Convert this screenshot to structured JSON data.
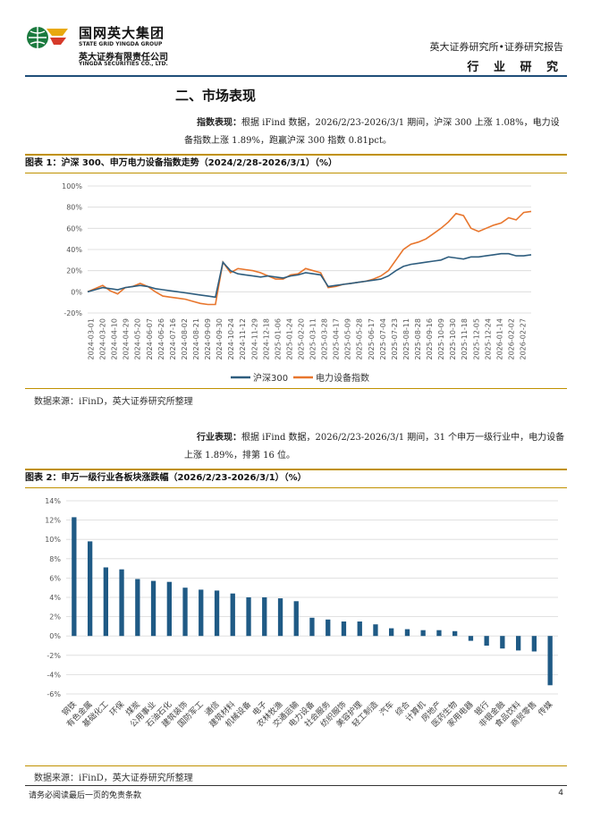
{
  "header": {
    "company_cn": "国网英大集团",
    "company_en": "STATE GRID YINGDA GROUP",
    "sub_cn": "英大证券有限责任公司",
    "sub_en": "YINGDA SECURITIES CO., LTD.",
    "right_title": "英大证券研究所•证券研究报告",
    "right_tag": "行 业 研 究"
  },
  "section_title": "二、市场表现",
  "para1": {
    "lead": "指数表现：",
    "text": "根据 iFind 数据，2026/2/23-2026/3/1 期间，沪深 300 上涨 1.08%，电力设备指数上涨 1.89%，跑赢沪深 300 指数 0.81pct。"
  },
  "fig1": {
    "title": "图表 1：沪深 300、申万电力设备指数走势（2024/2/28-2026/3/1）（%）",
    "source": "数据来源：iFinD，英大证券研究所整理"
  },
  "para2": {
    "lead": "行业表现：",
    "text": "根据 iFind 数据，2026/2/23-2026/3/1 期间，31 个申万一级行业中，电力设备上涨 1.89%，排第 16 位。"
  },
  "fig2": {
    "title": "图表 2：申万一级行业各板块涨跌幅（2026/2/23-2026/3/1）（%）",
    "source": "数据来源：iFinD，英大证券研究所整理"
  },
  "footer": {
    "disclaimer": "请务必阅读最后一页的免责条款",
    "page": "4"
  },
  "colors": {
    "hs300": "#2e5d7e",
    "power": "#e8762d",
    "bar": "#1f5a85",
    "accent": "#c09100"
  },
  "chart_data": [
    {
      "type": "line",
      "title": "沪深300、申万电力设备指数走势（2024/2/28-2026/3/1）（%）",
      "ylim": [
        -20,
        100
      ],
      "yticks": [
        "-20%",
        "0%",
        "20%",
        "40%",
        "60%",
        "80%",
        "100%"
      ],
      "ytick_values": [
        -20,
        0,
        20,
        40,
        60,
        80,
        100
      ],
      "xticks": [
        "2024-03-01",
        "2024-03-20",
        "2024-04-10",
        "2024-04-29",
        "2024-05-20",
        "2024-06-07",
        "2024-06-26",
        "2024-07-16",
        "2024-08-02",
        "2024-08-21",
        "2024-09-09",
        "2024-09-30",
        "2024-10-24",
        "2024-11-12",
        "2024-11-29",
        "2024-12-18",
        "2025-01-06",
        "2025-01-24",
        "2025-02-20",
        "2025-03-11",
        "2025-03-28",
        "2025-04-17",
        "2025-05-09",
        "2025-05-28",
        "2025-06-17",
        "2025-07-04",
        "2025-07-23",
        "2025-08-11",
        "2025-08-28",
        "2025-09-16",
        "2025-10-09",
        "2025-10-30",
        "2025-11-18",
        "2025-12-05",
        "2025-12-24",
        "2026-01-14",
        "2026-02-02",
        "2026-02-27"
      ],
      "series": [
        {
          "name": "沪深300",
          "values": [
            0,
            2,
            4,
            3,
            2,
            4,
            5,
            6,
            5,
            3,
            2,
            1,
            0,
            -1,
            -2,
            -3,
            -4,
            -5,
            28,
            20,
            17,
            16,
            15,
            14,
            15,
            14,
            13,
            15,
            16,
            18,
            17,
            16,
            5,
            6,
            7,
            8,
            9,
            10,
            11,
            12,
            15,
            20,
            24,
            26,
            27,
            28,
            29,
            30,
            33,
            32,
            31,
            33,
            33,
            34,
            35,
            36,
            36,
            34,
            34,
            35
          ]
        },
        {
          "name": "电力设备指数",
          "values": [
            0,
            3,
            6,
            1,
            -2,
            4,
            5,
            8,
            5,
            0,
            -4,
            -5,
            -6,
            -7,
            -9,
            -11,
            -12,
            -12,
            28,
            18,
            22,
            21,
            20,
            18,
            15,
            12,
            12,
            16,
            17,
            22,
            20,
            18,
            4,
            5,
            7,
            8,
            9,
            10,
            12,
            15,
            20,
            30,
            40,
            45,
            47,
            50,
            55,
            60,
            66,
            74,
            72,
            60,
            57,
            60,
            63,
            65,
            70,
            68,
            75,
            76
          ]
        }
      ],
      "legend": "bottom-center"
    },
    {
      "type": "bar",
      "title": "申万一级行业各板块涨跌幅（2026/2/23-2026/3/1）（%）",
      "ylim": [
        -6,
        14
      ],
      "yticks": [
        "-6%",
        "-4%",
        "-2%",
        "0%",
        "2%",
        "4%",
        "6%",
        "8%",
        "10%",
        "12%",
        "14%"
      ],
      "ytick_values": [
        -6,
        -4,
        -2,
        0,
        2,
        4,
        6,
        8,
        10,
        12,
        14
      ],
      "categories": [
        "钢铁",
        "有色金属",
        "基础化工",
        "环保",
        "煤炭",
        "公用事业",
        "石油石化",
        "建筑装饰",
        "国防军工",
        "通信",
        "建筑材料",
        "机械设备",
        "电子",
        "农林牧渔",
        "交通运输",
        "电力设备",
        "社会服务",
        "纺织服饰",
        "美容护理",
        "轻工制造",
        "汽车",
        "综合",
        "计算机",
        "房地产",
        "医药生物",
        "家用电器",
        "银行",
        "非银金融",
        "食品饮料",
        "商贸零售",
        "传媒"
      ],
      "values": [
        12.3,
        9.8,
        7.1,
        6.9,
        5.9,
        5.7,
        5.6,
        5.0,
        4.8,
        4.7,
        4.4,
        4.0,
        4.0,
        3.9,
        3.6,
        1.89,
        1.7,
        1.5,
        1.5,
        1.2,
        0.8,
        0.7,
        0.6,
        0.6,
        0.5,
        -0.5,
        -1.0,
        -1.3,
        -1.5,
        -1.6,
        -5.1
      ]
    }
  ]
}
